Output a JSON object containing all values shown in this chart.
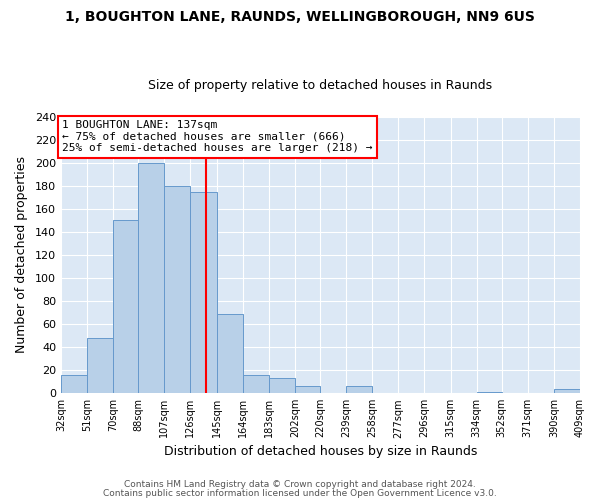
{
  "title": "1, BOUGHTON LANE, RAUNDS, WELLINGBOROUGH, NN9 6US",
  "subtitle": "Size of property relative to detached houses in Raunds",
  "xlabel": "Distribution of detached houses by size in Raunds",
  "ylabel": "Number of detached properties",
  "bin_edges": [
    32,
    51,
    70,
    88,
    107,
    126,
    145,
    164,
    183,
    202,
    220,
    239,
    258,
    277,
    296,
    315,
    334,
    352,
    371,
    390,
    409
  ],
  "bar_heights": [
    16,
    48,
    150,
    200,
    180,
    175,
    69,
    16,
    13,
    6,
    0,
    6,
    0,
    0,
    0,
    0,
    1,
    0,
    0,
    4
  ],
  "bar_color": "#b8d0e8",
  "bar_edgecolor": "#6699cc",
  "bar_linewidth": 0.7,
  "vline_x": 137,
  "vline_color": "red",
  "annotation_title": "1 BOUGHTON LANE: 137sqm",
  "annotation_line1": "← 75% of detached houses are smaller (666)",
  "annotation_line2": "25% of semi-detached houses are larger (218) →",
  "annotation_box_facecolor": "white",
  "annotation_box_edgecolor": "red",
  "ylim": [
    0,
    240
  ],
  "yticks": [
    0,
    20,
    40,
    60,
    80,
    100,
    120,
    140,
    160,
    180,
    200,
    220,
    240
  ],
  "xlim": [
    32,
    409
  ],
  "tick_labels": [
    "32sqm",
    "51sqm",
    "70sqm",
    "88sqm",
    "107sqm",
    "126sqm",
    "145sqm",
    "164sqm",
    "183sqm",
    "202sqm",
    "220sqm",
    "239sqm",
    "258sqm",
    "277sqm",
    "296sqm",
    "315sqm",
    "334sqm",
    "352sqm",
    "371sqm",
    "390sqm",
    "409sqm"
  ],
  "fig_background": "#ffffff",
  "plot_background": "#dce8f5",
  "grid_color": "#ffffff",
  "footer1": "Contains HM Land Registry data © Crown copyright and database right 2024.",
  "footer2": "Contains public sector information licensed under the Open Government Licence v3.0.",
  "title_fontsize": 10,
  "subtitle_fontsize": 9,
  "ylabel_fontsize": 9,
  "xlabel_fontsize": 9
}
